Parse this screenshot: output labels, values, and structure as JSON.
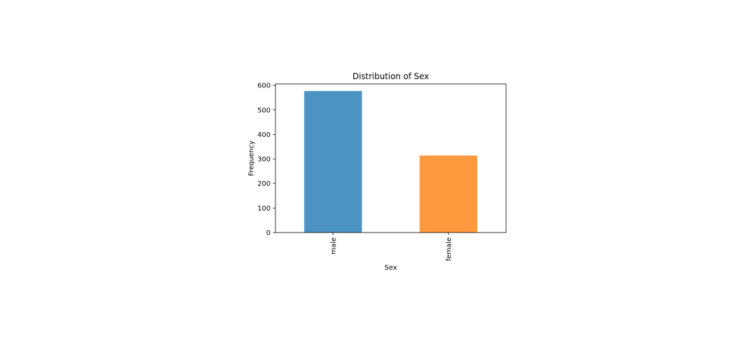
{
  "chart_data": {
    "type": "bar",
    "title": "Distribution of Sex",
    "xlabel": "Sex",
    "ylabel": "Frequency",
    "categories": [
      "male",
      "female"
    ],
    "values": [
      577,
      314
    ],
    "colors": [
      "#4c92c3",
      "#ff993e"
    ],
    "ylim": [
      0,
      606
    ],
    "yticks": [
      0,
      100,
      200,
      300,
      400,
      500,
      600
    ],
    "grid": false,
    "legend": "none",
    "xtick_rotation": "vertical"
  }
}
